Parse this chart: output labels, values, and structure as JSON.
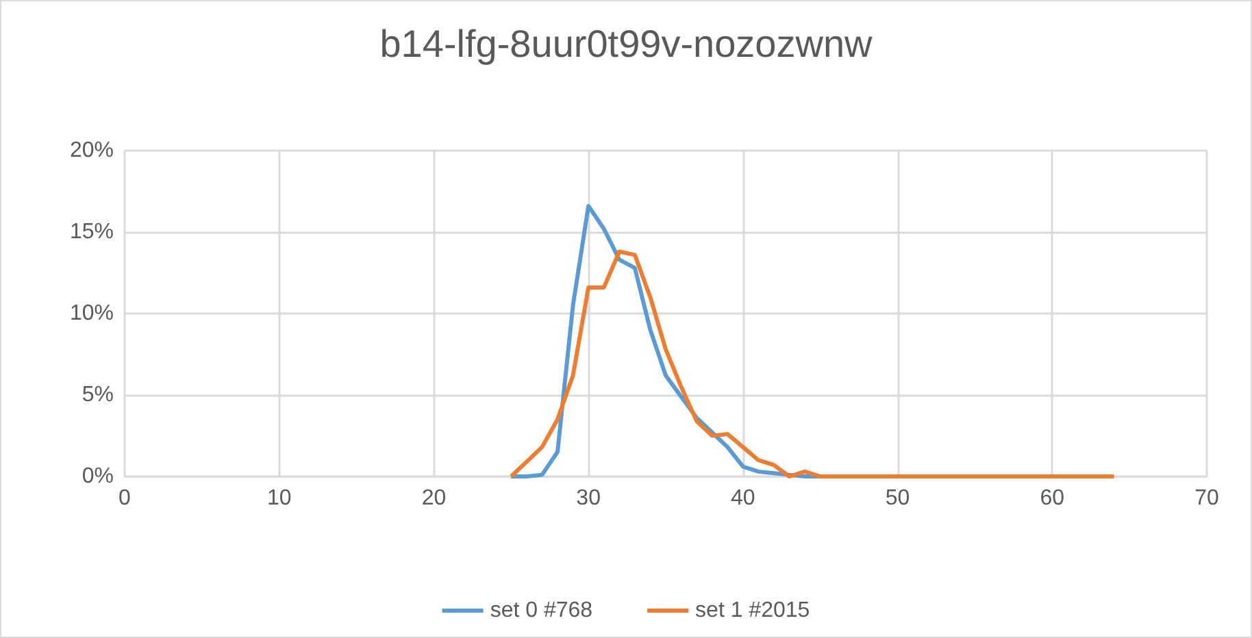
{
  "chart_data": {
    "type": "line",
    "title": "b14-lfg-8uur0t99v-nozozwnw",
    "x": [
      25,
      26,
      27,
      28,
      29,
      30,
      31,
      32,
      33,
      34,
      35,
      36,
      37,
      38,
      39,
      40,
      41,
      42,
      43,
      44,
      45,
      46,
      47,
      48,
      49,
      50,
      51,
      52,
      53,
      54,
      55,
      56,
      57,
      58,
      59,
      60,
      61,
      62,
      63,
      64
    ],
    "series": [
      {
        "name": "set 0 #768",
        "color": "#5b9bd5",
        "values": [
          0,
          0,
          0.1,
          1.5,
          10.5,
          16.6,
          15.2,
          13.3,
          12.8,
          9,
          6.2,
          4.9,
          3.6,
          2.7,
          1.8,
          0.6,
          0.3,
          0.2,
          0.1,
          0,
          0,
          0,
          null,
          null,
          null,
          null,
          null,
          null,
          null,
          null,
          null,
          null,
          null,
          null,
          null,
          null,
          null,
          null,
          null,
          null
        ]
      },
      {
        "name": "set 1 #2015",
        "color": "#ed7d31",
        "values": [
          0,
          0.9,
          1.8,
          3.5,
          6.2,
          11.6,
          11.6,
          13.8,
          13.6,
          11,
          7.8,
          5.5,
          3.4,
          2.5,
          2.6,
          1.8,
          1,
          0.7,
          0,
          0.3,
          0,
          0,
          0,
          0,
          0,
          0,
          0,
          0,
          0,
          0,
          0,
          0,
          0,
          0,
          0,
          0,
          0,
          0,
          0,
          0
        ]
      }
    ],
    "xlim": [
      0,
      70
    ],
    "xticks": [
      0,
      10,
      20,
      30,
      40,
      50,
      60,
      70
    ],
    "ylim": [
      0,
      20
    ],
    "yticks": [
      {
        "value": 0,
        "label": "0%"
      },
      {
        "value": 5,
        "label": "5%"
      },
      {
        "value": 10,
        "label": "10%"
      },
      {
        "value": 15,
        "label": "15%"
      },
      {
        "value": 20,
        "label": "20%"
      }
    ],
    "grid": true,
    "legend": "bottom",
    "marker": "none",
    "line_style": "solid"
  }
}
